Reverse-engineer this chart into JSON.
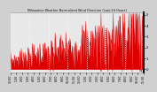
{
  "title": "Milwaukee Weather Normalized Wind Direction (Last 24 Hours)",
  "bg_color": "#d0d0d0",
  "plot_bg": "#e8e8e8",
  "line_color": "#dd0000",
  "ylim": [
    -0.3,
    5.2
  ],
  "grid_color": "#ffffff",
  "num_points": 288,
  "seed": 7,
  "title_fontsize": 2.5,
  "tick_fontsize": 2.8
}
